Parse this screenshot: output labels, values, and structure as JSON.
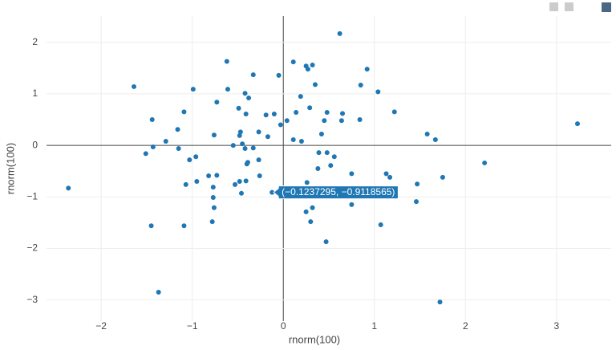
{
  "chart_data": {
    "type": "scatter",
    "x_label": "rnorm(100)",
    "y_label": "rnorm(100)",
    "hover_label": "(−0.1237295, −0.9118565)",
    "color": "#1f77b4",
    "grid": true,
    "xlim": [
      -2.6,
      3.6
    ],
    "ylim": [
      -3.41,
      2.51
    ],
    "xticks": [
      {
        "value": -2,
        "label": "−2"
      },
      {
        "value": -1,
        "label": "−1"
      },
      0,
      1,
      2,
      3
    ],
    "yticks": [
      {
        "value": -3,
        "label": "−3"
      },
      {
        "value": -2,
        "label": "−2"
      },
      {
        "value": -1,
        "label": "−1"
      },
      0,
      1,
      2
    ],
    "x": [
      0.62,
      -0.62,
      0.11,
      0.25,
      0.32,
      0.27,
      0.92,
      -1.64,
      -0.99,
      -0.61,
      -0.33,
      -0.05,
      0.35,
      0.85,
      1.04,
      -0.42,
      -0.38,
      0.19,
      -0.73,
      -1.09,
      -1.44,
      -0.49,
      -0.41,
      -0.19,
      -0.1,
      0.29,
      0.14,
      0.48,
      0.65,
      1.22,
      0.04,
      0.45,
      0.64,
      0.84,
      -0.03,
      -1.16,
      -1.29,
      -1.43,
      -1.15,
      -1.51,
      -0.76,
      -0.47,
      -0.48,
      -0.27,
      -0.17,
      0.42,
      0.11,
      0.2,
      1.58,
      1.67,
      3.23,
      -0.55,
      -0.45,
      -0.42,
      -0.33,
      -0.96,
      -1.03,
      0.39,
      0.48,
      0.56,
      -0.27,
      -0.39,
      -0.4,
      0.38,
      0.52,
      2.21,
      0.75,
      1.13,
      1.17,
      1.75,
      -0.82,
      -0.73,
      -0.95,
      -0.26,
      -1.07,
      -0.53,
      -0.48,
      -0.77,
      -0.41,
      0.26,
      1.47,
      -0.46,
      -0.1237295,
      -2.36,
      -0.77,
      -0.76,
      0.75,
      1.46,
      0.25,
      0.32,
      0.3,
      -0.78,
      -1.45,
      -1.09,
      1.07,
      0.47,
      -1.37,
      1.72
    ],
    "y": [
      2.17,
      1.63,
      1.62,
      1.54,
      1.56,
      1.48,
      1.48,
      1.14,
      1.09,
      1.09,
      1.37,
      1.36,
      1.18,
      1.17,
      1.04,
      1.01,
      0.92,
      0.95,
      0.84,
      0.65,
      0.5,
      0.72,
      0.61,
      0.59,
      0.61,
      0.73,
      0.64,
      0.64,
      0.62,
      0.65,
      0.48,
      0.48,
      0.48,
      0.5,
      0.4,
      0.31,
      0.08,
      -0.03,
      -0.06,
      -0.16,
      0.2,
      0.26,
      0.19,
      0.26,
      0.17,
      0.22,
      0.11,
      0.08,
      0.22,
      0.11,
      0.42,
      0.0,
      0.03,
      -0.06,
      -0.05,
      -0.22,
      -0.28,
      -0.14,
      -0.14,
      -0.22,
      -0.28,
      -0.33,
      -0.36,
      -0.45,
      -0.39,
      -0.34,
      -0.55,
      -0.55,
      -0.62,
      -0.62,
      -0.59,
      -0.58,
      -0.7,
      -0.59,
      -0.76,
      -0.76,
      -0.7,
      -0.81,
      -0.69,
      -0.72,
      -0.75,
      -0.93,
      -0.9118565,
      -0.83,
      -1.01,
      -1.21,
      -1.15,
      -1.09,
      -1.29,
      -1.21,
      -1.48,
      -1.48,
      -1.56,
      -1.56,
      -1.54,
      -1.87,
      -2.85,
      -3.04
    ]
  }
}
